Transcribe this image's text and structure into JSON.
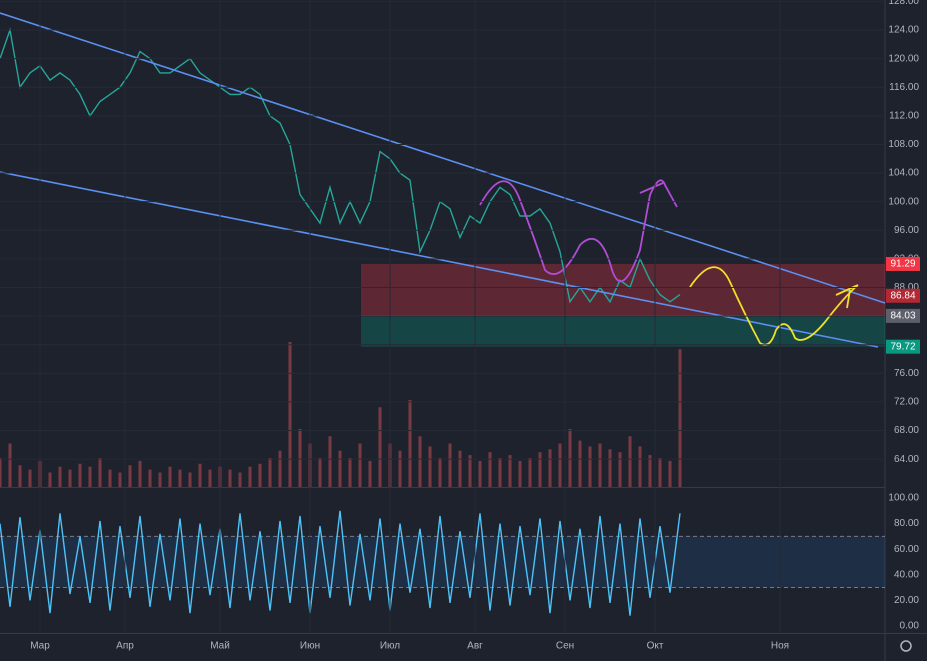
{
  "chart_data": [
    {
      "type": "line",
      "ylim": [
        60.1,
        128.2
      ],
      "yticks": [
        {
          "value": 64,
          "label": "64.00"
        },
        {
          "value": 68,
          "label": "68.00"
        },
        {
          "value": 72,
          "label": "72.00"
        },
        {
          "value": 76,
          "label": "76.00"
        },
        {
          "value": 80,
          "label": "80.00"
        },
        {
          "value": 84,
          "label": "84.00"
        },
        {
          "value": 88,
          "label": "88.00"
        },
        {
          "value": 92,
          "label": "92.00"
        },
        {
          "value": 96,
          "label": "96.00"
        },
        {
          "value": 100,
          "label": "100.00"
        },
        {
          "value": 104,
          "label": "104.00"
        },
        {
          "value": 108,
          "label": "108.00"
        },
        {
          "value": 112,
          "label": "112.00"
        },
        {
          "value": 116,
          "label": "116.00"
        },
        {
          "value": 120,
          "label": "120.00"
        },
        {
          "value": 124,
          "label": "124.00"
        },
        {
          "value": 128,
          "label": "128.00"
        }
      ],
      "xlim": [
        0,
        88.5
      ],
      "xticks": [
        {
          "value": 4,
          "label": "Мар"
        },
        {
          "value": 12.5,
          "label": "Апр"
        },
        {
          "value": 22,
          "label": "Май"
        },
        {
          "value": 31,
          "label": "Июн"
        },
        {
          "value": 39,
          "label": "Июл"
        },
        {
          "value": 47.5,
          "label": "Авг"
        },
        {
          "value": 56.5,
          "label": "Сен"
        },
        {
          "value": 65.5,
          "label": "Окт"
        },
        {
          "value": 78,
          "label": "Ноя"
        }
      ],
      "series": [
        {
          "color": "#26a69a",
          "values": [
            120,
            124,
            116,
            118,
            119,
            117,
            118,
            117,
            115,
            112,
            114,
            115,
            116,
            118,
            121,
            120,
            118,
            118,
            119,
            120,
            118,
            117,
            116,
            115,
            115,
            116,
            115,
            112,
            111,
            108,
            101,
            99,
            97,
            102,
            97,
            100,
            97,
            100,
            107,
            106,
            104,
            103,
            93,
            96,
            100,
            99,
            95,
            98,
            97,
            100,
            102,
            101,
            98,
            98,
            99,
            97,
            93,
            86,
            88,
            86,
            88,
            86,
            89,
            88,
            92,
            89,
            87,
            86,
            87
          ]
        }
      ],
      "price_levels": [
        {
          "value": 91.29,
          "color": "#f23645"
        },
        {
          "value": 86.84,
          "color": "#b22833"
        },
        {
          "value": 84.03,
          "color": "#5d606b"
        },
        {
          "value": 79.72,
          "color": "#089981"
        }
      ]
    },
    {
      "type": "bar",
      "ylim": [
        0,
        100
      ],
      "color": "#7a3a44",
      "values": [
        20,
        30,
        15,
        12,
        18,
        10,
        14,
        12,
        16,
        14,
        20,
        12,
        10,
        15,
        18,
        12,
        10,
        14,
        12,
        10,
        16,
        12,
        14,
        12,
        10,
        14,
        16,
        20,
        25,
        100,
        40,
        30,
        20,
        35,
        25,
        20,
        30,
        18,
        55,
        30,
        25,
        60,
        35,
        28,
        20,
        30,
        25,
        22,
        18,
        24,
        20,
        22,
        18,
        20,
        24,
        26,
        30,
        40,
        32,
        28,
        30,
        26,
        24,
        35,
        28,
        22,
        20,
        18,
        95
      ]
    },
    {
      "type": "line",
      "ylim": [
        -5.5,
        107
      ],
      "yticks": [
        {
          "value": 0,
          "label": "0.00"
        },
        {
          "value": 20,
          "label": "20.00"
        },
        {
          "value": 40,
          "label": "40.00"
        },
        {
          "value": 60,
          "label": "60.00"
        },
        {
          "value": 80,
          "label": "80.00"
        },
        {
          "value": 100,
          "label": "100.00"
        }
      ],
      "band": [
        30,
        70
      ],
      "series": [
        {
          "color": "#4fc3f7",
          "values": [
            80,
            15,
            85,
            20,
            75,
            10,
            88,
            25,
            70,
            18,
            82,
            12,
            78,
            22,
            86,
            15,
            72,
            20,
            84,
            10,
            80,
            24,
            76,
            14,
            88,
            20,
            74,
            12,
            82,
            18,
            86,
            10,
            78,
            22,
            90,
            16,
            72,
            20,
            84,
            12,
            80,
            26,
            76,
            14,
            86,
            18,
            74,
            22,
            88,
            12,
            80,
            16,
            78,
            24,
            84,
            10,
            82,
            20,
            76,
            14,
            86,
            18,
            80,
            8,
            84,
            22,
            78,
            26,
            88
          ]
        }
      ]
    }
  ]
}
